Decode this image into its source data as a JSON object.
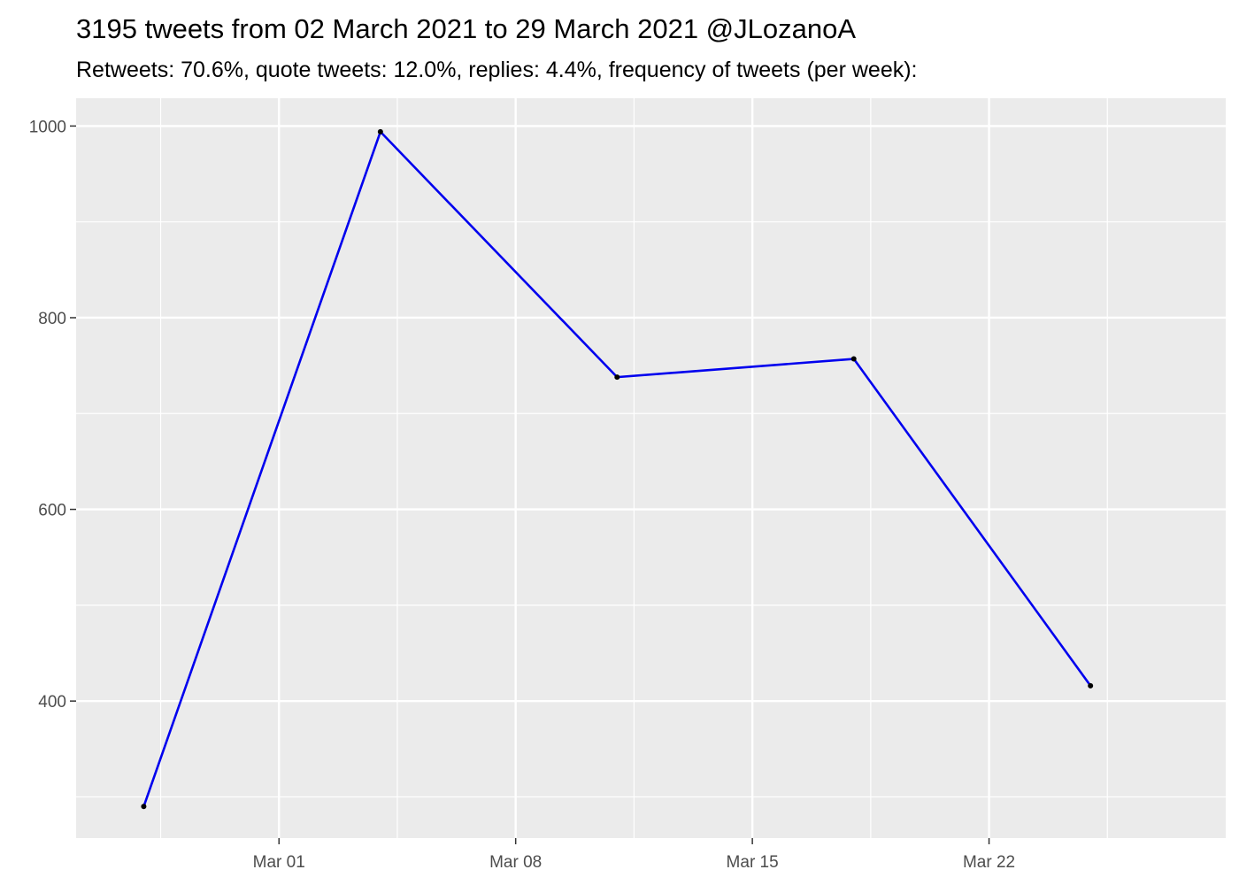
{
  "chart_data": {
    "type": "line",
    "title": "3195 tweets from 02 March 2021 to 29 March 2021 @JLozanoA",
    "subtitle": "Retweets: 70.6%, quote tweets: 12.0%, replies: 4.4%, frequency of tweets (per week):",
    "xlabel": "",
    "ylabel": "",
    "x_axis_type": "date",
    "x_ticks": [
      {
        "date": "2021-03-01",
        "label": "Mar 01"
      },
      {
        "date": "2021-03-08",
        "label": "Mar 08"
      },
      {
        "date": "2021-03-15",
        "label": "Mar 15"
      },
      {
        "date": "2021-03-22",
        "label": "Mar 22"
      }
    ],
    "y_ticks": [
      400,
      600,
      800,
      1000
    ],
    "xlim": [
      "2021-02-23",
      "2021-03-29"
    ],
    "ylim": [
      257,
      1029
    ],
    "grid": true,
    "line_color": "#0000ee",
    "point_color": "#000000",
    "panel_background": "#ebebeb",
    "series": [
      {
        "x": [
          "2021-02-25",
          "2021-03-04",
          "2021-03-11",
          "2021-03-18",
          "2021-03-25"
        ],
        "values": [
          290,
          994,
          738,
          757,
          416
        ]
      }
    ]
  }
}
